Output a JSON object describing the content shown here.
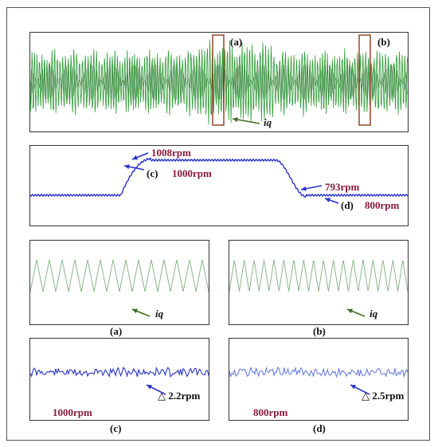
{
  "chart_data": [
    {
      "type": "line",
      "panel": "top-current",
      "series": [
        {
          "name": "iq",
          "signal": "sinusoidal current waveform"
        }
      ],
      "labels": {
        "box_a": "(a)",
        "box_b": "(b)",
        "trace": "iq"
      },
      "colors": {
        "trace": "#2e9a35",
        "box": "#8b3a1a"
      }
    },
    {
      "type": "line",
      "panel": "speed",
      "series": [
        {
          "name": "speed",
          "segments": [
            {
              "from": 0.0,
              "to": 0.24,
              "rpm": 800
            },
            {
              "from": 0.24,
              "to": 0.32,
              "rpm_start": 800,
              "rpm_end": 1008
            },
            {
              "from": 0.32,
              "to": 0.65,
              "rpm": 1000
            },
            {
              "from": 0.65,
              "to": 0.73,
              "rpm_start": 1000,
              "rpm_end": 793
            },
            {
              "from": 0.73,
              "to": 1.0,
              "rpm": 800
            }
          ]
        }
      ],
      "annotations": {
        "peak": "1008rpm",
        "c": "(c)",
        "c_value": "1000rpm",
        "trough": "793rpm",
        "d": "(d)",
        "d_value": "800rpm"
      },
      "colors": {
        "trace": "#2a34c8",
        "arrow": "#2a34c8",
        "value": "#8b1a3a"
      }
    },
    {
      "type": "line",
      "panel": "zoom-a",
      "caption": "(a)",
      "trace_label": "iq",
      "cycles": 14,
      "colors": {
        "trace": "#7fb07f",
        "arrow": "#3d6b1f"
      }
    },
    {
      "type": "line",
      "panel": "zoom-b",
      "caption": "(b)",
      "trace_label": "iq",
      "cycles": 18,
      "colors": {
        "trace": "#7fb07f",
        "arrow": "#3d6b1f"
      }
    },
    {
      "type": "line",
      "panel": "zoom-c",
      "caption": "(c)",
      "ripple": "△ 2.2rpm",
      "speed": "1000rpm",
      "colors": {
        "trace": "#2a34c8",
        "arrow": "#2a34c8",
        "value": "#8b1a3a"
      }
    },
    {
      "type": "line",
      "panel": "zoom-d",
      "caption": "(d)",
      "ripple": "△ 2.5rpm",
      "speed": "800rpm",
      "colors": {
        "trace": "#6d7ee0",
        "arrow": "#2a34c8",
        "value": "#8b1a3a"
      }
    }
  ]
}
